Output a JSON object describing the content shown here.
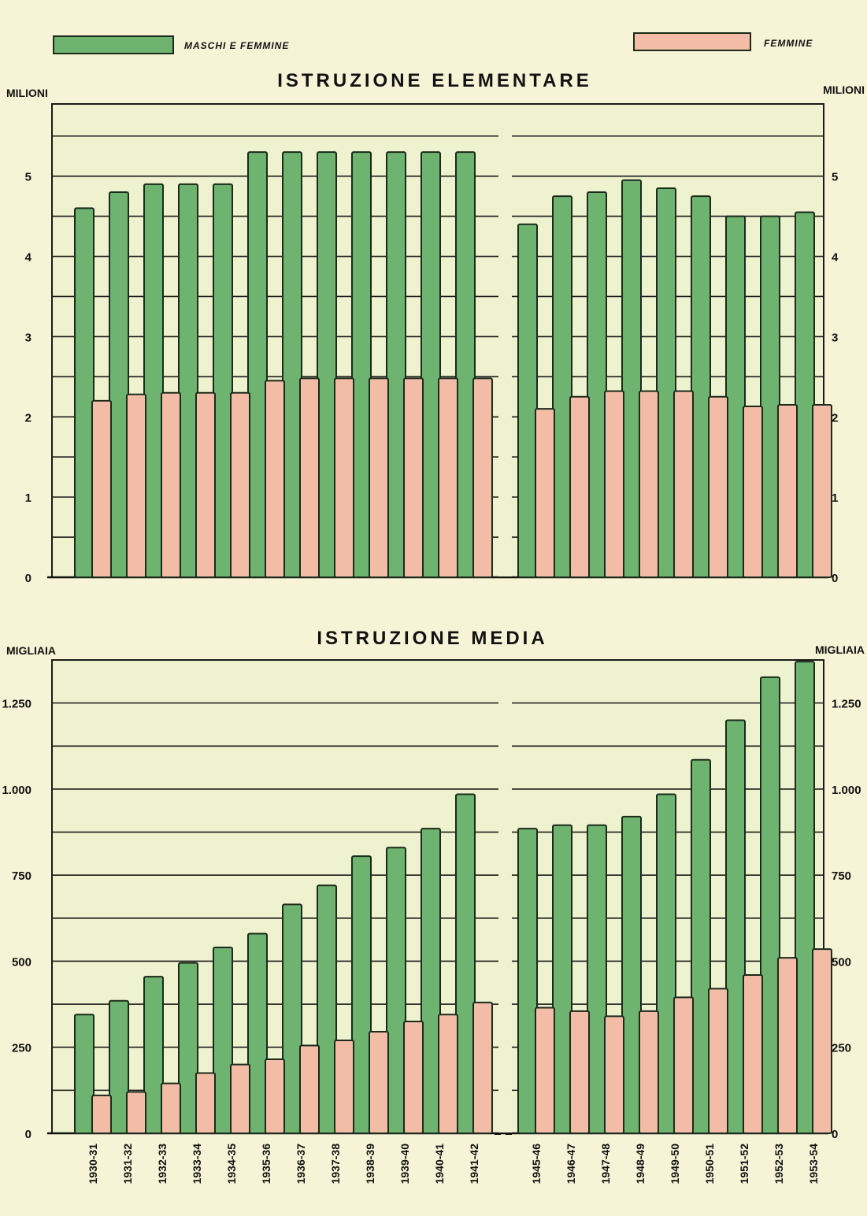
{
  "legend": {
    "all_label": "MASCHI E FEMMINE",
    "female_label": "FEMMINE"
  },
  "colors": {
    "all": "#6eb470",
    "female": "#f2bca6",
    "background": "#f6f3d6",
    "plot": "#eef2cf"
  },
  "chart_data": [
    {
      "type": "bar",
      "title": "ISTRUZIONE ELEMENTARE",
      "ylabel_left": "MILIONI",
      "ylabel_right": "MILIONI",
      "ylim": [
        0,
        5.9
      ],
      "yticks": [
        0,
        1,
        2,
        3,
        4,
        5
      ],
      "ytick_labels": [
        "0",
        "1",
        "2",
        "3",
        "4",
        "5"
      ],
      "categories": [
        "1930-31",
        "1931-32",
        "1932-33",
        "1933-34",
        "1934-35",
        "1935-36",
        "1936-37",
        "1937-38",
        "1938-39",
        "1939-40",
        "1940-41",
        "1941-42",
        "1945-46",
        "1946-47",
        "1947-48",
        "1948-49",
        "1949-50",
        "1950-51",
        "1951-52",
        "1952-53",
        "1953-54"
      ],
      "series": [
        {
          "name": "MASCHI E FEMMINE",
          "values": [
            4.6,
            4.8,
            4.9,
            4.9,
            4.9,
            5.3,
            5.3,
            5.3,
            5.3,
            5.3,
            5.3,
            5.3,
            4.4,
            4.75,
            4.8,
            4.95,
            4.85,
            4.75,
            4.5,
            4.5,
            4.55
          ]
        },
        {
          "name": "FEMMINE",
          "values": [
            2.2,
            2.28,
            2.3,
            2.3,
            2.3,
            2.45,
            2.48,
            2.48,
            2.48,
            2.48,
            2.48,
            2.48,
            2.1,
            2.25,
            2.32,
            2.32,
            2.32,
            2.25,
            2.13,
            2.15,
            2.15
          ]
        }
      ],
      "grid": true,
      "legend_position": "top"
    },
    {
      "type": "bar",
      "title": "ISTRUZIONE MEDIA",
      "ylabel_left": "MIGLIAIA",
      "ylabel_right": "MIGLIAIA",
      "ylim": [
        0,
        1375
      ],
      "yticks": [
        0,
        250,
        500,
        750,
        1000,
        1250
      ],
      "ytick_labels": [
        "0",
        "250",
        "500",
        "750",
        "1.000",
        "1.250"
      ],
      "categories": [
        "1930-31",
        "1931-32",
        "1932-33",
        "1933-34",
        "1934-35",
        "1935-36",
        "1936-37",
        "1937-38",
        "1938-39",
        "1939-40",
        "1940-41",
        "1941-42",
        "1945-46",
        "1946-47",
        "1947-48",
        "1948-49",
        "1949-50",
        "1950-51",
        "1951-52",
        "1952-53",
        "1953-54"
      ],
      "category_labels": [
        "1930-31",
        "1931-32",
        "1932-33",
        "1933-34",
        "1934-35",
        "1935-36",
        "1936-37",
        "1937-38",
        "1938-39",
        "1939-40",
        "1940-41",
        "1941-42",
        "1945-46",
        "1946-47",
        "1947-48",
        "1948-49",
        "1949-50",
        "1950-51",
        "1951-52",
        "1952-53",
        "1953-54"
      ],
      "series": [
        {
          "name": "MASCHI E FEMMINE",
          "values": [
            345,
            385,
            455,
            495,
            540,
            580,
            665,
            720,
            805,
            830,
            885,
            985,
            885,
            895,
            895,
            920,
            985,
            1085,
            1200,
            1325,
            1370
          ]
        },
        {
          "name": "FEMMINE",
          "values": [
            110,
            120,
            145,
            175,
            200,
            215,
            255,
            270,
            295,
            325,
            345,
            380,
            365,
            355,
            340,
            355,
            395,
            420,
            460,
            510,
            535
          ]
        }
      ],
      "grid": true
    }
  ]
}
